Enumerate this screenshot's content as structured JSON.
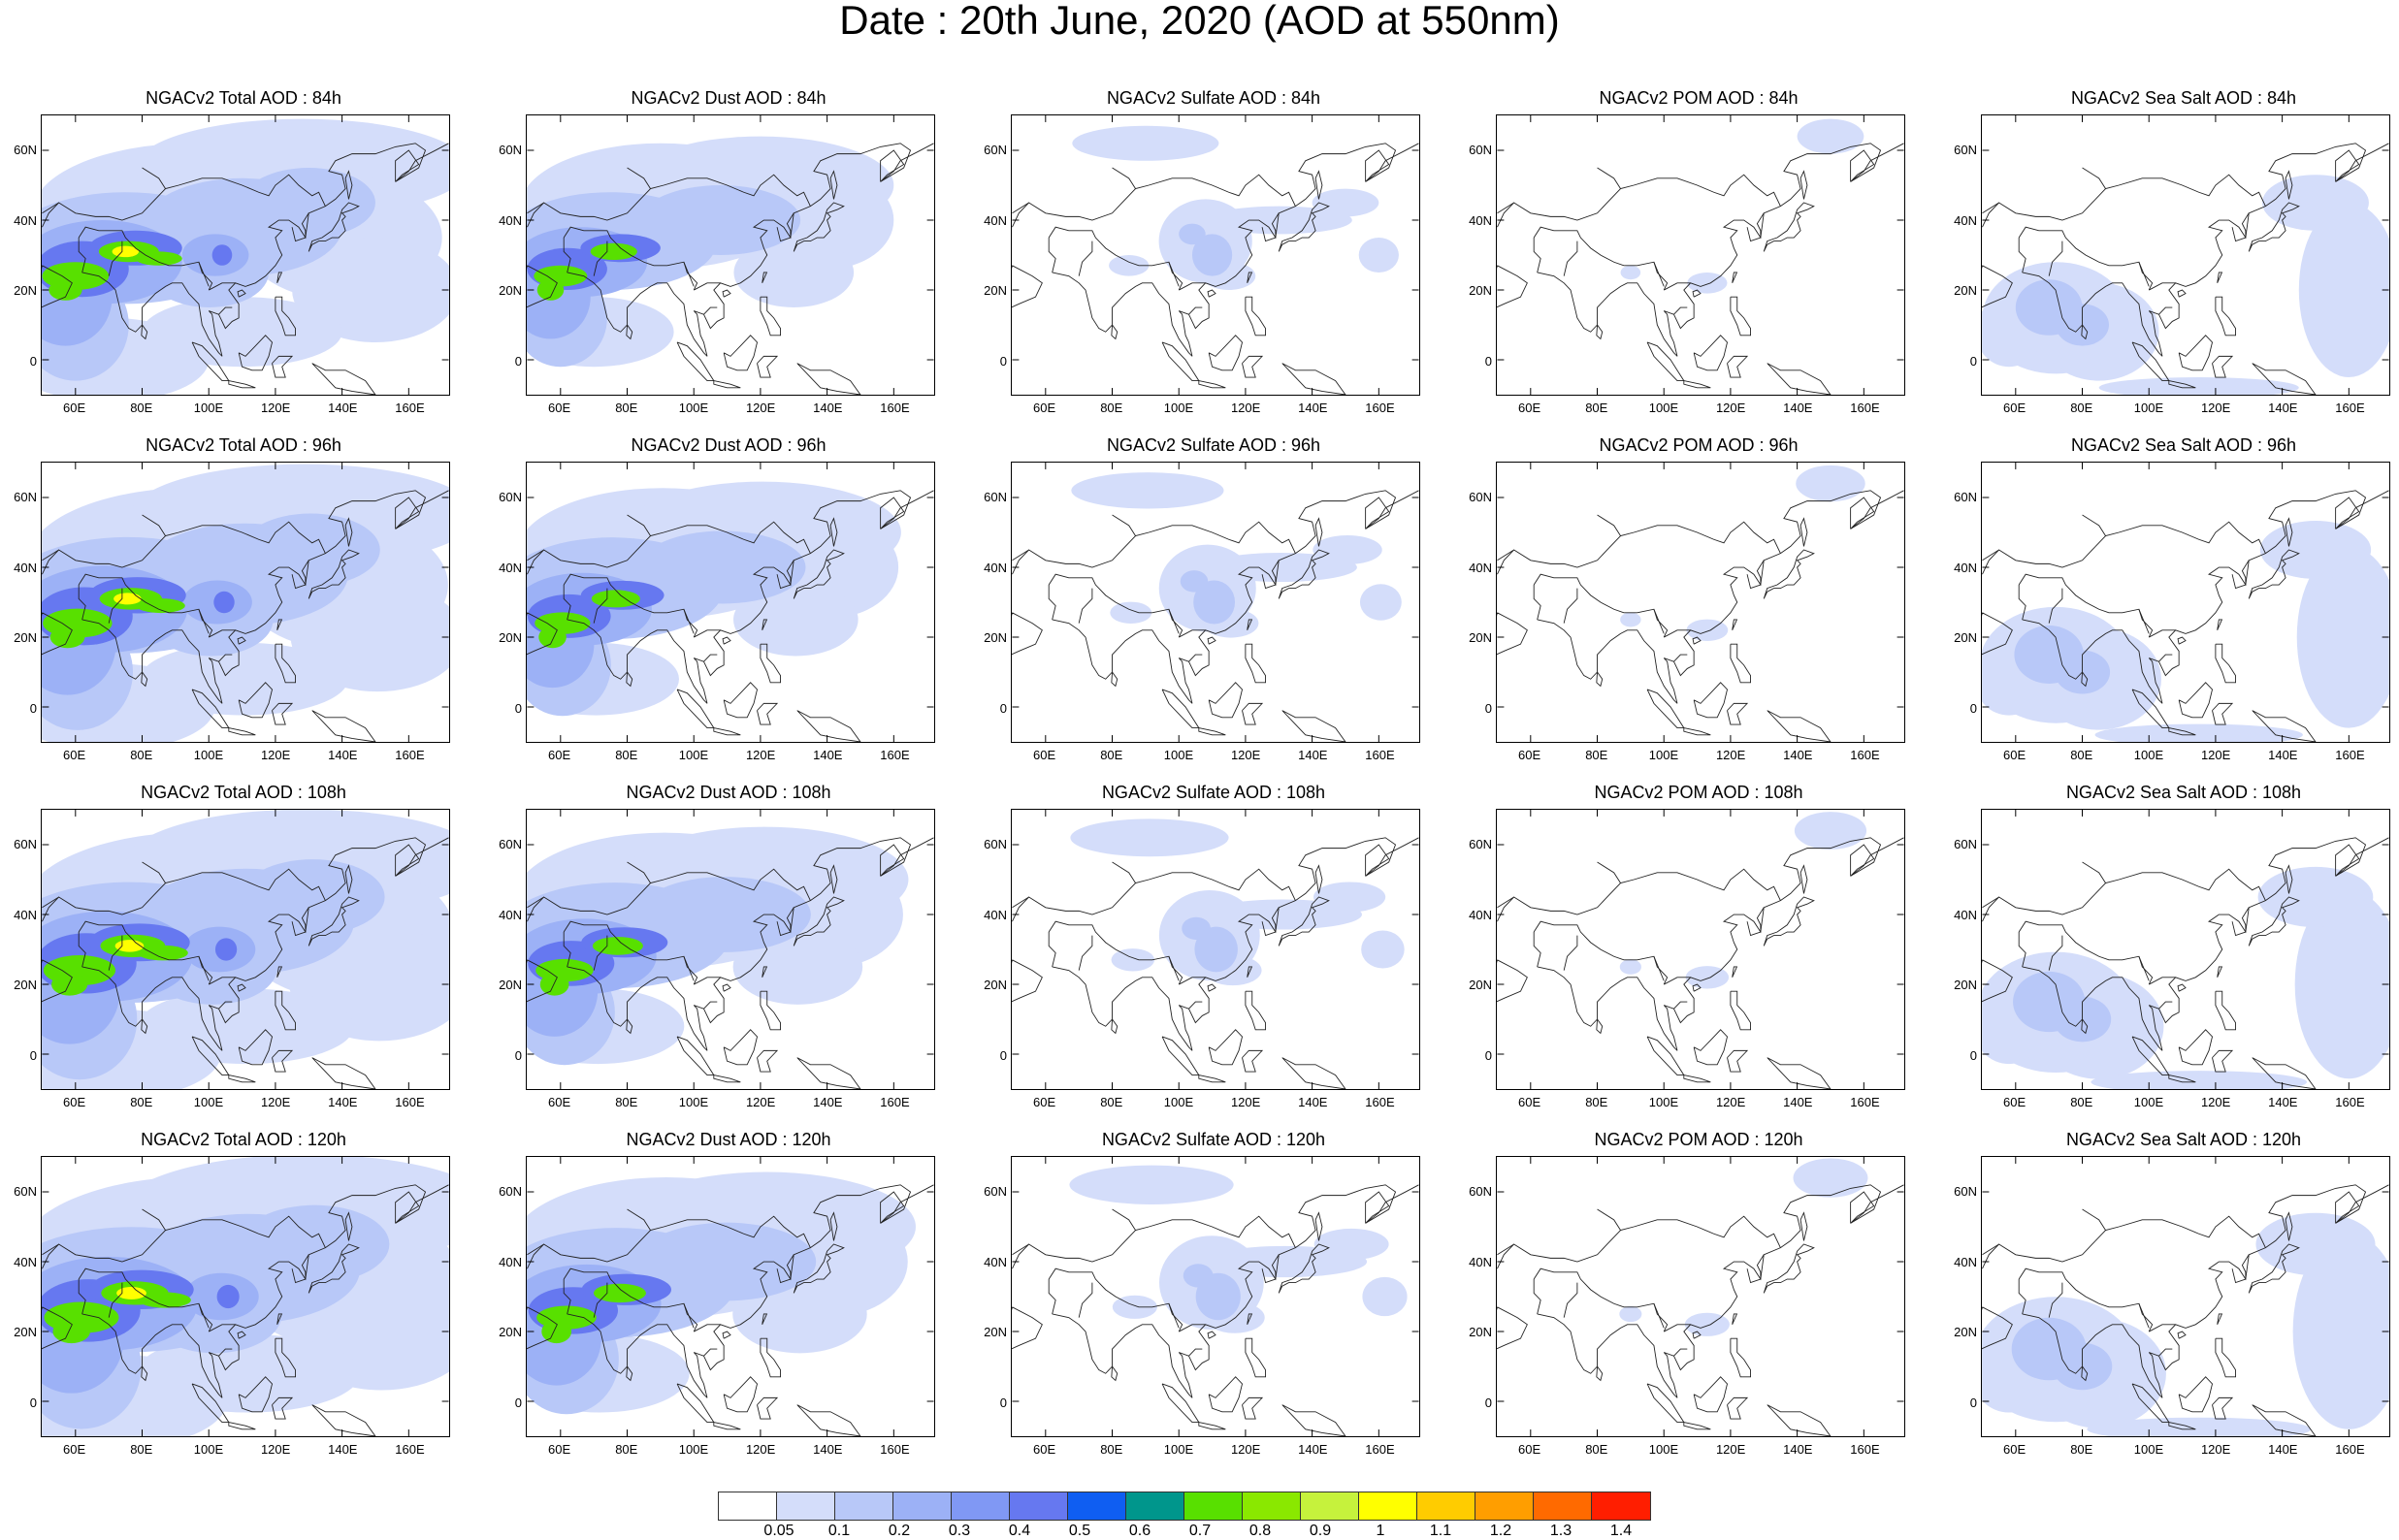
{
  "title": "Date : 20th June, 2020 (AOD at 550nm)",
  "lat_labels": [
    "60N",
    "40N",
    "20N",
    "0"
  ],
  "lon_labels": [
    "60E",
    "80E",
    "100E",
    "120E",
    "140E",
    "160E"
  ],
  "rows": [
    {
      "lead": "84h",
      "panels": [
        {
          "title": "NGACv2 Total AOD : 84h",
          "species": "total"
        },
        {
          "title": "NGACv2 Dust AOD : 84h",
          "species": "dust"
        },
        {
          "title": "NGACv2 Sulfate AOD : 84h",
          "species": "sulfate"
        },
        {
          "title": "NGACv2 POM AOD : 84h",
          "species": "pom"
        },
        {
          "title": "NGACv2 Sea Salt AOD : 84h",
          "species": "seasalt"
        }
      ]
    },
    {
      "lead": "96h",
      "panels": [
        {
          "title": "NGACv2 Total AOD : 96h",
          "species": "total"
        },
        {
          "title": "NGACv2 Dust AOD : 96h",
          "species": "dust"
        },
        {
          "title": "NGACv2 Sulfate AOD : 96h",
          "species": "sulfate"
        },
        {
          "title": "NGACv2 POM AOD : 96h",
          "species": "pom"
        },
        {
          "title": "NGACv2 Sea Salt AOD : 96h",
          "species": "seasalt"
        }
      ]
    },
    {
      "lead": "108h",
      "panels": [
        {
          "title": "NGACv2 Total AOD : 108h",
          "species": "total"
        },
        {
          "title": "NGACv2 Dust AOD : 108h",
          "species": "dust"
        },
        {
          "title": "NGACv2 Sulfate AOD : 108h",
          "species": "sulfate"
        },
        {
          "title": "NGACv2 POM AOD : 108h",
          "species": "pom"
        },
        {
          "title": "NGACv2 Sea Salt AOD : 108h",
          "species": "seasalt"
        }
      ]
    },
    {
      "lead": "120h",
      "panels": [
        {
          "title": "NGACv2 Total AOD : 120h",
          "species": "total"
        },
        {
          "title": "NGACv2 Dust AOD : 120h",
          "species": "dust"
        },
        {
          "title": "NGACv2 Sulfate AOD : 120h",
          "species": "sulfate"
        },
        {
          "title": "NGACv2 POM AOD : 120h",
          "species": "pom"
        },
        {
          "title": "NGACv2 Sea Salt  AOD : 120h",
          "species": "seasalt"
        }
      ]
    }
  ],
  "colorbar": {
    "labels": [
      "0.05",
      "0.1",
      "0.2",
      "0.3",
      "0.4",
      "0.5",
      "0.6",
      "0.7",
      "0.8",
      "0.9",
      "1",
      "1.1",
      "1.2",
      "1.3",
      "1.4"
    ],
    "colors": [
      "#ffffff",
      "#d4ddfa",
      "#b8c8f8",
      "#9cb1f6",
      "#8098f4",
      "#6678f0",
      "#0f5ef2",
      "#00968c",
      "#58e000",
      "#8ae800",
      "#c6f23c",
      "#ffff00",
      "#ffcc00",
      "#ff9e00",
      "#ff6a00",
      "#ff1e00"
    ]
  }
}
